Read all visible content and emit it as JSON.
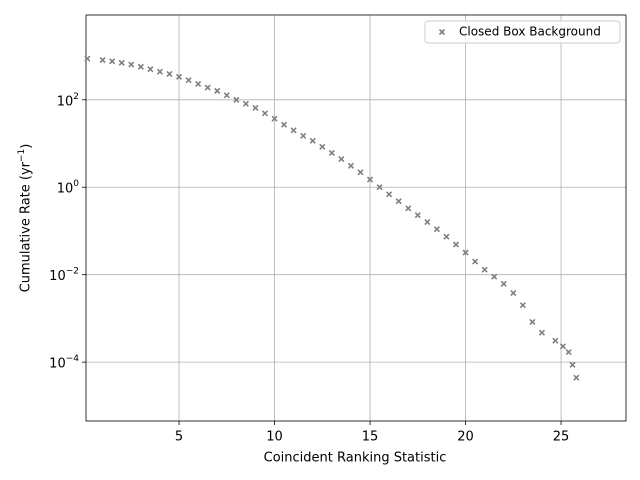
{
  "chart_data": {
    "type": "scatter",
    "log_y": true,
    "grid": true,
    "legend": "upper right",
    "x_label": "Coincident Ranking Statistic",
    "y_label": "Cumulative Rate (yr",
    "y_label_exponent": "−1",
    "y_label_end": ")",
    "xlim": [
      0.13,
      28.4
    ],
    "ylim": [
      4.5e-06,
      8700
    ],
    "xticks": [
      5,
      10,
      15,
      20,
      25
    ],
    "yticks": [
      {
        "value": 0.0001,
        "label": "10",
        "exponent": "−4"
      },
      {
        "value": 0.01,
        "label": "10",
        "exponent": "−2"
      },
      {
        "value": 1,
        "label": "10",
        "exponent": "0"
      },
      {
        "value": 100,
        "label": "10",
        "exponent": "2"
      }
    ],
    "series": [
      {
        "name": "Closed Box Background",
        "color": "#808080",
        "x": [
          0.2,
          1,
          1.5,
          2,
          2.5,
          3,
          3.5,
          4,
          4.5,
          5,
          5.5,
          6,
          6.5,
          7,
          7.5,
          8,
          8.5,
          9,
          9.5,
          10,
          10.5,
          11,
          11.5,
          12,
          12.5,
          13,
          13.5,
          14,
          14.5,
          15,
          15.5,
          16,
          16.5,
          17,
          17.5,
          18,
          18.5,
          19,
          19.5,
          20,
          20.5,
          21,
          21.5,
          22,
          22.5,
          23,
          23.5,
          24,
          24.7,
          25.1,
          25.4,
          25.6,
          25.8
        ],
        "values": [
          870,
          810,
          760,
          700,
          640,
          570,
          500,
          440,
          390,
          335,
          280,
          230,
          190,
          160,
          127,
          100,
          81,
          65,
          49,
          37,
          27,
          20,
          15,
          11.5,
          8.4,
          6.1,
          4.4,
          3.1,
          2.2,
          1.5,
          1.0,
          0.69,
          0.48,
          0.33,
          0.23,
          0.16,
          0.11,
          0.074,
          0.049,
          0.032,
          0.02,
          0.013,
          0.009,
          0.0062,
          0.0038,
          0.002,
          0.00083,
          0.00047,
          0.00031,
          0.00023,
          0.00017,
          8.7e-05,
          4.4e-05
        ]
      }
    ]
  }
}
